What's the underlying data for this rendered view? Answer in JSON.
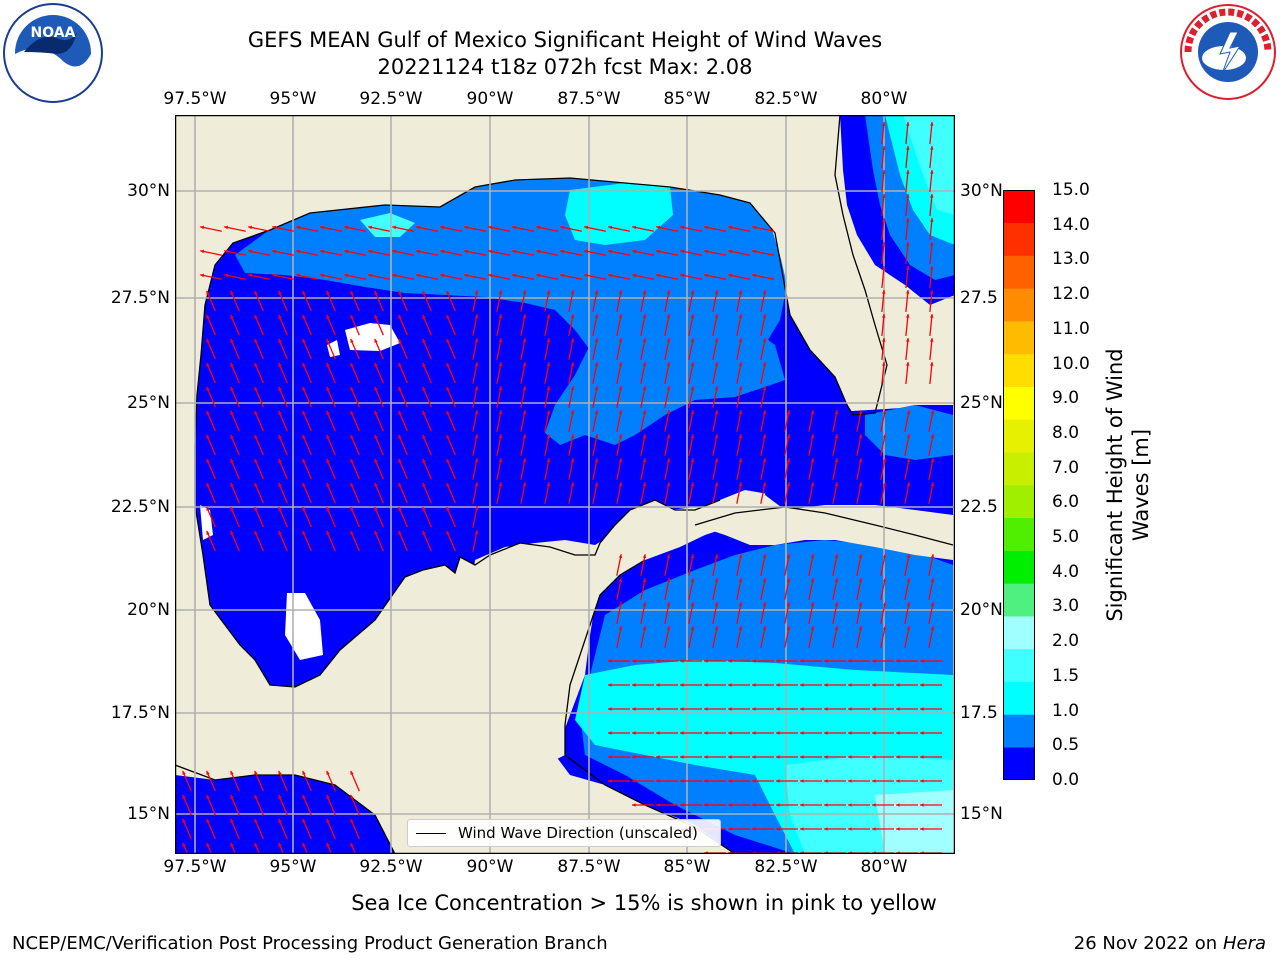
{
  "header": {
    "title_line1": "GEFS MEAN Gulf of Mexico Significant Height of Wind Waves",
    "title_line2": "20221124 t18z 072h fcst   Max: 2.08"
  },
  "axes": {
    "lon_ticks": [
      "97.5°W",
      "95°W",
      "92.5°W",
      "90°W",
      "87.5°W",
      "85°W",
      "82.5°W",
      "80°W"
    ],
    "lat_ticks": [
      "30°N",
      "27.5°N",
      "25°N",
      "22.5°N",
      "20°N",
      "17.5°N",
      "15°N"
    ],
    "lat_ticks_right": [
      "30°N",
      "27.5",
      "25°N",
      "22.5",
      "20°N",
      "17.5",
      "15°N"
    ]
  },
  "colorbar": {
    "label_line1": "Significant Height of Wind",
    "label_line2": "Waves [m]",
    "ticks": [
      "15.0",
      "14.0",
      "13.0",
      "12.0",
      "11.0",
      "10.0",
      "9.0",
      "8.0",
      "7.0",
      "6.0",
      "5.0",
      "4.0",
      "3.0",
      "2.0",
      "1.5",
      "1.0",
      "0.5",
      "0.0"
    ],
    "colors": [
      "#0000ff",
      "#0080ff",
      "#00ffff",
      "#40ffff",
      "#a0ffff",
      "#50f080",
      "#00ee00",
      "#50ee00",
      "#a0ee00",
      "#c8ee00",
      "#e6f000",
      "#ffff00",
      "#ffdd00",
      "#ffbb00",
      "#ff8c00",
      "#ff6000",
      "#ff3000",
      "#ff0000"
    ]
  },
  "legend": {
    "label": "Wind Wave Direction (unscaled)"
  },
  "footnote": "Sea Ice Concentration > 15% is shown in pink to yellow",
  "credit": "NCEP/EMC/Verification Post Processing Product Generation Branch",
  "dateline": {
    "date": "26 Nov 2022 on",
    "machine": "Hera"
  },
  "logos": {
    "left": "NOAA",
    "right": "NATIONAL WEATHER SERVICE"
  },
  "map_colors": {
    "land": "#efedda",
    "coast": "#000000",
    "grid": "#b0b0b0",
    "arrow": "#ff0000",
    "bin_0_05": "#0000ff",
    "bin_05_1": "#0080ff",
    "bin_1_15": "#00ffff",
    "bin_15_2": "#40ffff",
    "bin_2_3": "#a0ffff"
  }
}
